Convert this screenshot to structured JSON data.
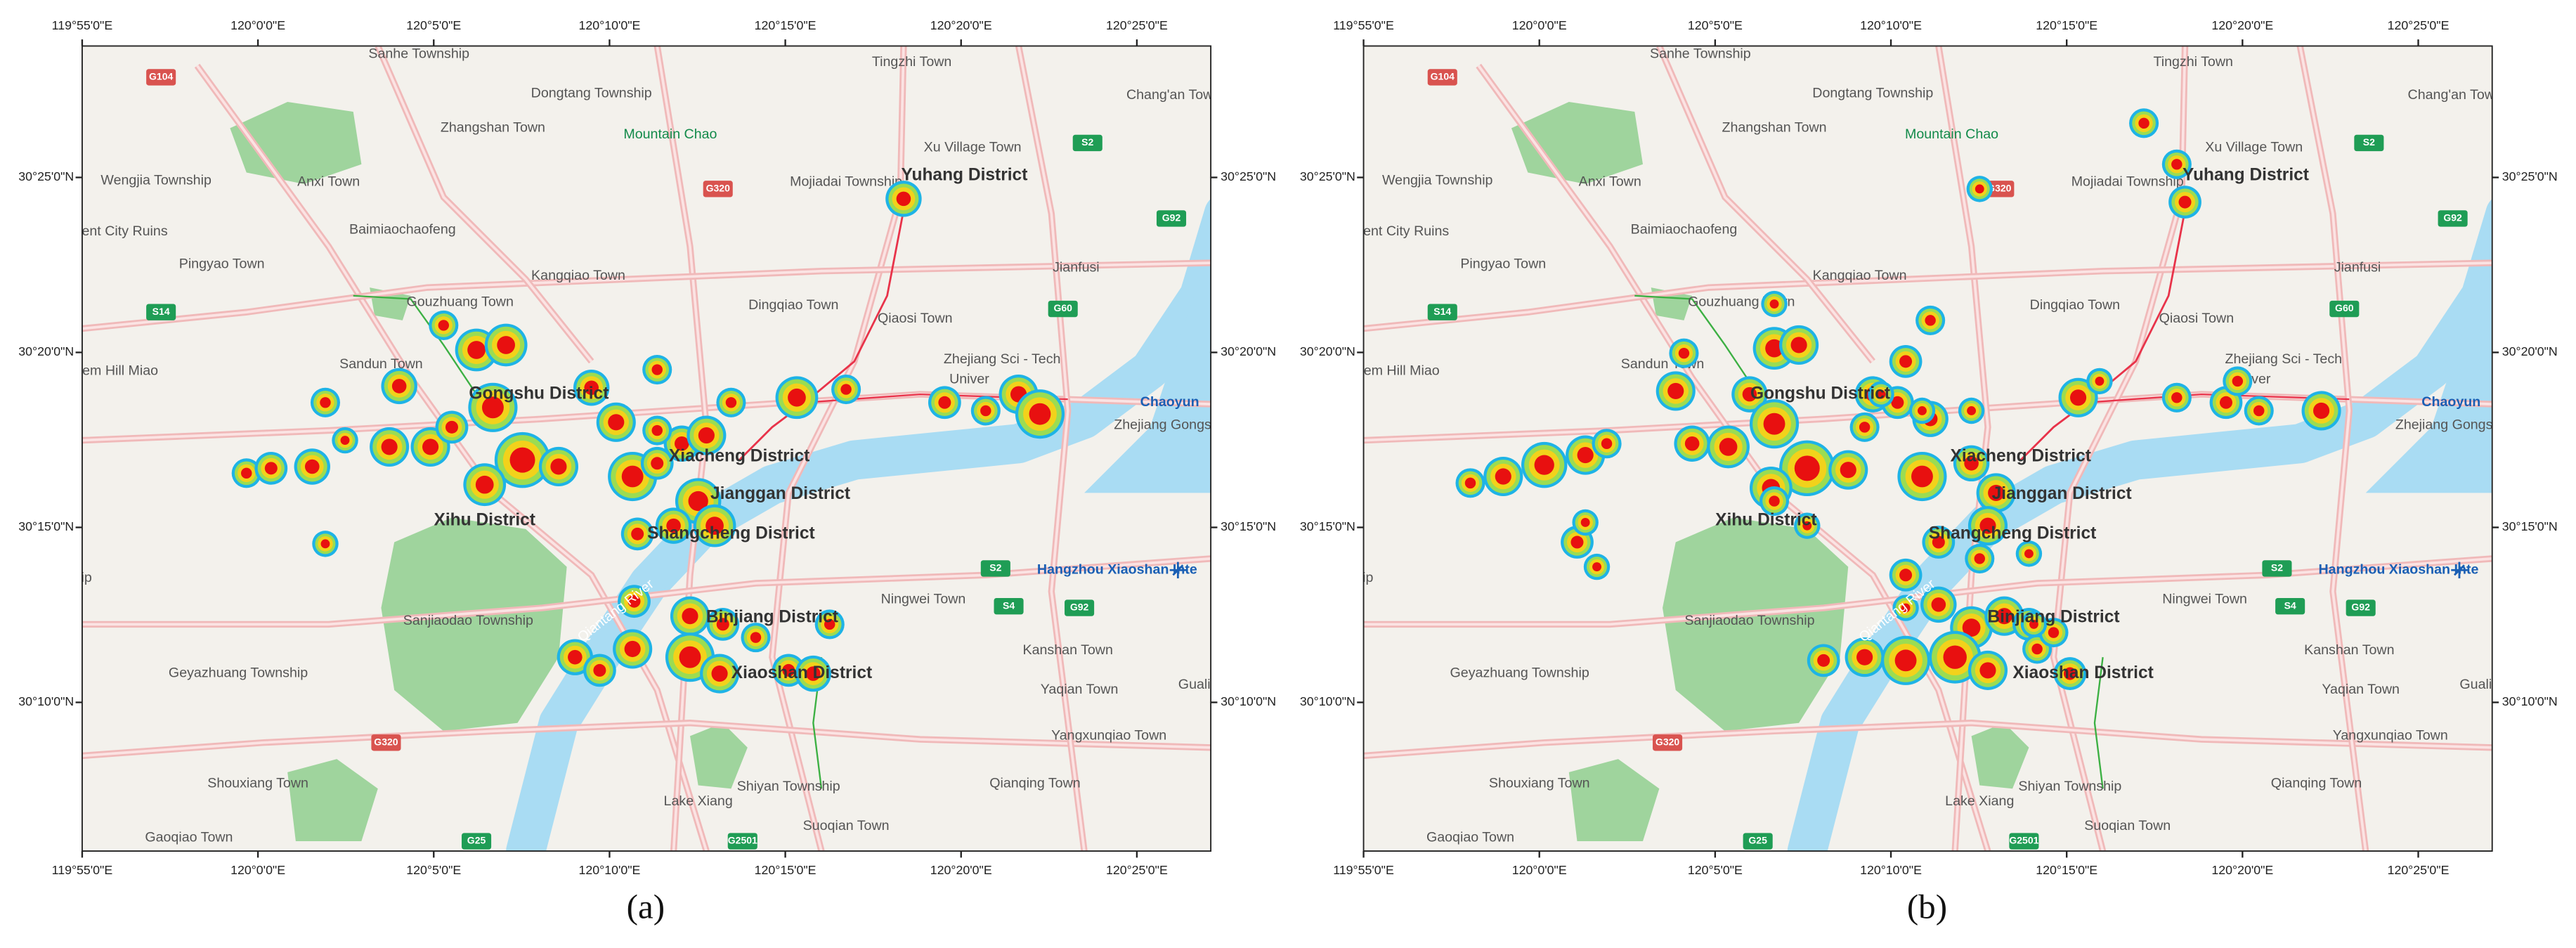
{
  "panels": [
    {
      "caption": "(a)"
    },
    {
      "caption": "(b)"
    }
  ],
  "map": {
    "lon_labels": [
      "119°55'0\"E",
      "120°0'0\"E",
      "120°5'0\"E",
      "120°10'0\"E",
      "120°15'0\"E",
      "120°20'0\"E",
      "120°25'0\"E"
    ],
    "lat_labels": [
      "30°25'0\"N",
      "30°20'0\"N",
      "30°15'0\"N",
      "30°10'0\"N"
    ],
    "places": [
      "Sanhe Township",
      "Dongtang Township",
      "Tingzhi Town",
      "Chang'an Tow",
      "Zhangshan Town",
      "Xu Village Town",
      "Wengjia Township",
      "Anxi Town",
      "Mojiadai Township",
      "ient City Ruins",
      "Baimiaochaofeng",
      "Pingyao Town",
      "Kangqiao Town",
      "Jianfusi",
      "Gouzhuang Town",
      "Dingqiao Town",
      "Qiaosi Town",
      "Zhejiang Sci - Tech",
      "Sandun Town",
      "tem Hill Miao",
      "Univer",
      "Zhejiang Gongsh",
      "g Township",
      "Sanjiaodao Township",
      "Ningwei Town",
      "Geyazhuang Township",
      "Kanshan Town",
      "Yaqian Town",
      "Guali",
      "Yangxunqiao Town",
      "Shouxiang Town",
      "Shiyan Township",
      "Qianqing Town",
      "Lake Xiang",
      "Gaoqiao Town",
      "Suoqian Town"
    ],
    "districts": [
      "Yuhang District",
      "Gongshu District",
      "Xiacheng District",
      "Jianggan District",
      "Xihu District",
      "Shangcheng District",
      "Binjiang District",
      "Xiaoshan District"
    ],
    "landmarks": [
      "Mountain Chao",
      "Chaoyun",
      "Hangzhou Xiaoshan Inte",
      "Qiantang River"
    ],
    "road_shields": [
      "G104",
      "S2",
      "G320",
      "G92",
      "S14",
      "G60",
      "S2",
      "S4",
      "G92",
      "G320",
      "G25",
      "G2501"
    ]
  }
}
